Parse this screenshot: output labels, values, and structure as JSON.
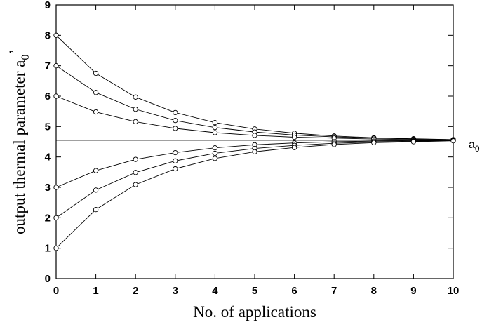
{
  "chart_data": {
    "type": "line",
    "title": "",
    "xlabel": "No. of applications",
    "ylabel": "output thermal parameter a0'",
    "ylabel_parts": {
      "base": "output thermal parameter a",
      "sub": "0",
      "prime": "’"
    },
    "xlim": [
      0,
      10
    ],
    "ylim": [
      0,
      9
    ],
    "xticks": [
      "0",
      "1",
      "2",
      "3",
      "4",
      "5",
      "6",
      "7",
      "8",
      "9",
      "10"
    ],
    "yticks": [
      "0",
      "1",
      "2",
      "3",
      "4",
      "5",
      "6",
      "7",
      "8",
      "9"
    ],
    "grid": false,
    "legend": "none",
    "reference_line": {
      "y": 4.55,
      "label_base": "a",
      "label_sub": "0"
    },
    "x": [
      0,
      1,
      2,
      3,
      4,
      5,
      6,
      7,
      8,
      9,
      10
    ],
    "series": [
      {
        "values": [
          8.0,
          6.75,
          5.97,
          5.46,
          5.13,
          4.92,
          4.78,
          4.69,
          4.63,
          4.6,
          4.57
        ]
      },
      {
        "values": [
          7.0,
          6.12,
          5.57,
          5.2,
          4.97,
          4.82,
          4.72,
          4.66,
          4.62,
          4.59,
          4.57
        ]
      },
      {
        "values": [
          6.0,
          5.48,
          5.16,
          4.94,
          4.8,
          4.71,
          4.65,
          4.62,
          4.59,
          4.57,
          4.56
        ]
      },
      {
        "values": [
          3.0,
          3.55,
          3.92,
          4.14,
          4.3,
          4.4,
          4.46,
          4.5,
          4.52,
          4.54,
          4.55
        ]
      },
      {
        "values": [
          2.0,
          2.91,
          3.49,
          3.87,
          4.12,
          4.28,
          4.38,
          4.45,
          4.49,
          4.52,
          4.54
        ]
      },
      {
        "values": [
          1.0,
          2.27,
          3.09,
          3.61,
          3.95,
          4.17,
          4.31,
          4.41,
          4.47,
          4.5,
          4.53
        ]
      }
    ]
  }
}
